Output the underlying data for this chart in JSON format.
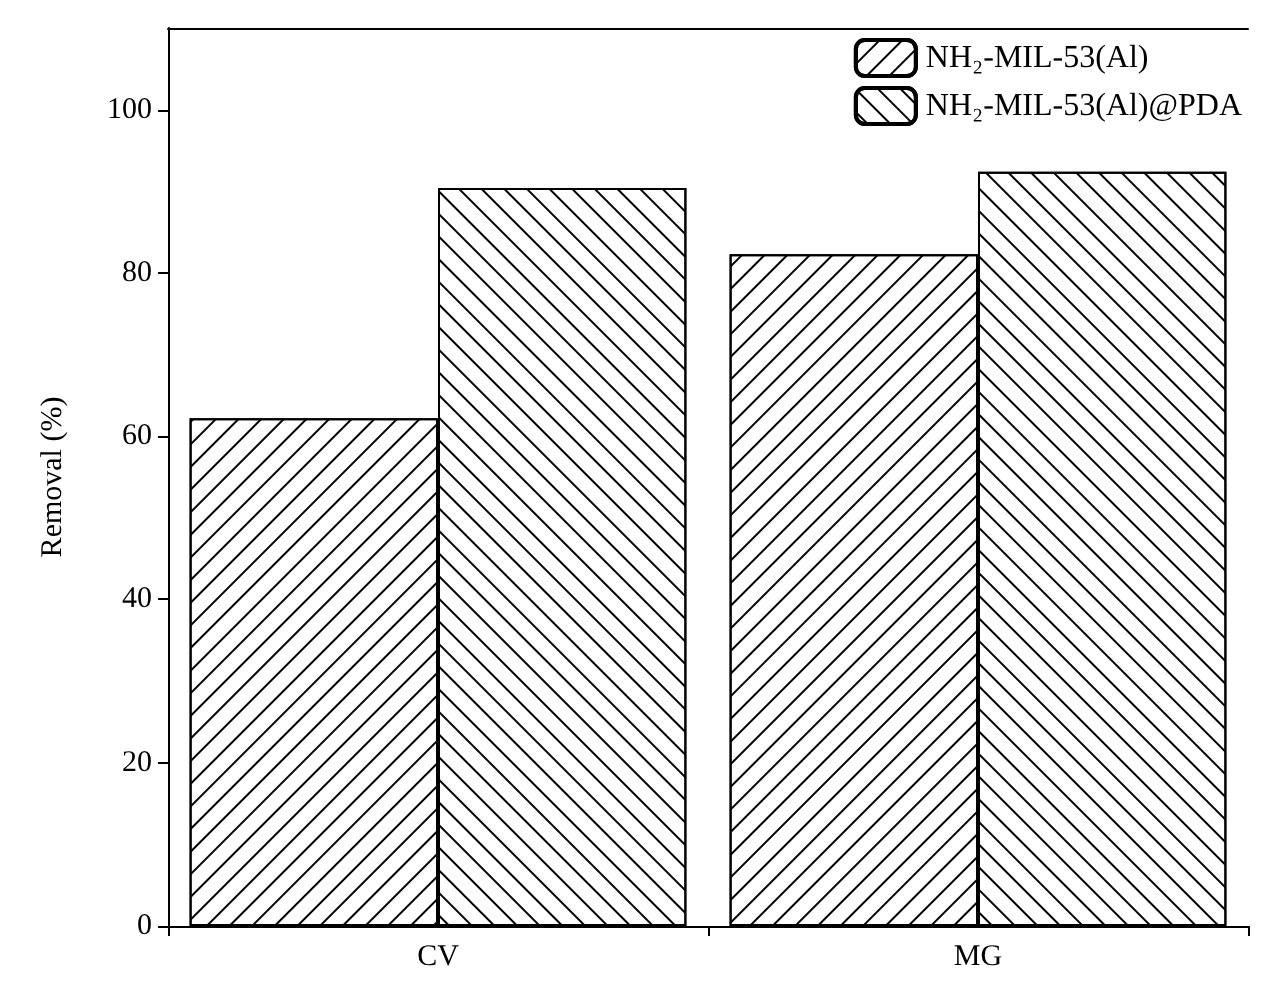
{
  "chart_data": {
    "type": "bar",
    "ylabel": "Removal (%)",
    "categories": [
      "CV",
      "MG"
    ],
    "series": [
      {
        "name": "NH₂-MIL-53(Al)",
        "color": "#ffffff",
        "values": [
          62.2,
          82.3
        ]
      },
      {
        "name": "NH₂-MIL-53(Al)@PDA",
        "color": "#ffffff",
        "values": [
          90.4,
          92.4
        ]
      }
    ],
    "ylim": [
      0,
      110
    ],
    "yticks": [
      0,
      20,
      40,
      60,
      80,
      100
    ],
    "grid": false,
    "legend": "top right"
  }
}
